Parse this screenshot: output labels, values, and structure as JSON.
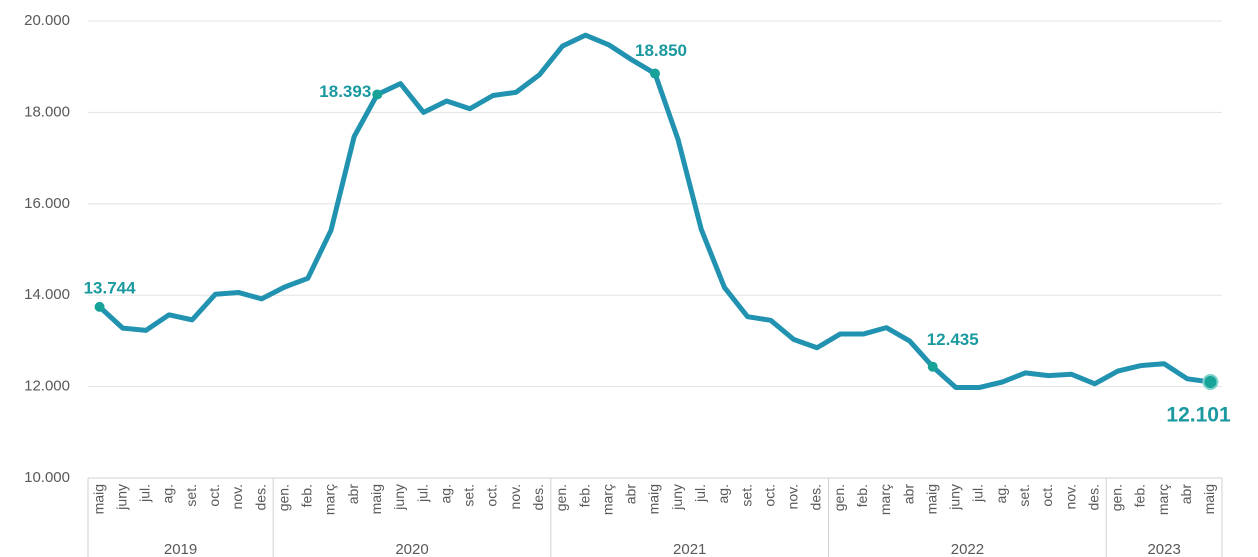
{
  "chart_data": {
    "type": "line",
    "groups": [
      {
        "label": "2019",
        "categories": [
          "maig",
          "juny",
          "jul.",
          "ag.",
          "set.",
          "oct.",
          "nov.",
          "des."
        ]
      },
      {
        "label": "2020",
        "categories": [
          "gen.",
          "feb.",
          "març",
          "abr",
          "maig",
          "juny",
          "jul.",
          "ag.",
          "set.",
          "oct.",
          "nov.",
          "des."
        ]
      },
      {
        "label": "2021",
        "categories": [
          "gen.",
          "feb.",
          "març",
          "abr",
          "maig",
          "juny",
          "jul.",
          "ag.",
          "set.",
          "oct.",
          "nov.",
          "des."
        ]
      },
      {
        "label": "2022",
        "categories": [
          "gen.",
          "feb.",
          "març",
          "abr",
          "maig",
          "juny",
          "jul.",
          "ag.",
          "set.",
          "oct.",
          "nov.",
          "des."
        ]
      },
      {
        "label": "2023",
        "categories": [
          "gen.",
          "feb.",
          "març",
          "abr",
          "maig"
        ]
      }
    ],
    "values": [
      13744,
      13280,
      13230,
      13570,
      13460,
      14020,
      14060,
      13920,
      14180,
      14370,
      15420,
      17470,
      18393,
      18630,
      18000,
      18250,
      18080,
      18370,
      18440,
      18820,
      19450,
      19690,
      19480,
      19150,
      18850,
      17400,
      15440,
      14170,
      13530,
      13450,
      13030,
      12850,
      13150,
      13150,
      13290,
      13000,
      12435,
      11980,
      11980,
      12100,
      12300,
      12240,
      12270,
      12060,
      12340,
      12460,
      12500,
      12170,
      12101
    ],
    "value_labels": [
      "13.744",
      null,
      null,
      null,
      null,
      null,
      null,
      null,
      null,
      null,
      null,
      null,
      "18.393",
      null,
      null,
      null,
      null,
      null,
      null,
      null,
      null,
      null,
      null,
      null,
      "18.850",
      null,
      null,
      null,
      null,
      null,
      null,
      null,
      null,
      null,
      null,
      null,
      "12.435",
      null,
      null,
      null,
      null,
      null,
      null,
      null,
      null,
      null,
      null,
      null,
      "12.101"
    ],
    "color": "#2193b0",
    "marker_color": "#17a398",
    "ylim": [
      10000,
      20000
    ],
    "yticks": [
      {
        "value": 10000,
        "label": "10.000"
      },
      {
        "value": 12000,
        "label": "12.000"
      },
      {
        "value": 14000,
        "label": "14.000"
      },
      {
        "value": 16000,
        "label": "16.000"
      },
      {
        "value": 18000,
        "label": "18.000"
      },
      {
        "value": 20000,
        "label": "20.000"
      }
    ],
    "grid": true
  }
}
